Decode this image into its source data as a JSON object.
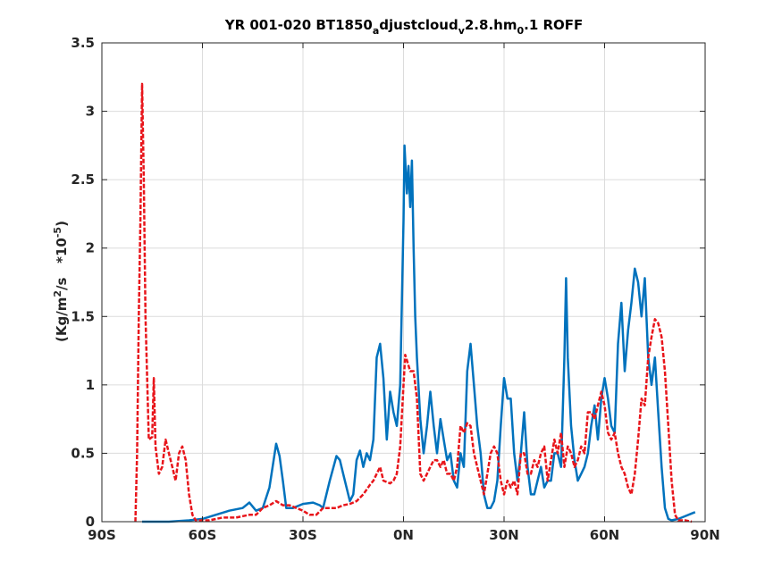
{
  "chart_data": {
    "type": "line",
    "title": "YR 001-020 BT1850_adjustcloud_v2.8.hm_0.1 ROFF",
    "title_parts": [
      "YR 001-020 BT1850",
      "a",
      "djustcloud",
      "v",
      "2.8.hm",
      "0",
      ".1 ROFF"
    ],
    "ylabel": "(Kg/m²/s   *10⁻⁵)",
    "ylabel_parts": [
      "(Kg/m",
      "2",
      "/s   *10",
      "-5",
      ")"
    ],
    "xlabel": "",
    "xlim": [
      -90,
      90
    ],
    "ylim": [
      0,
      3.5
    ],
    "x_ticks": [
      -90,
      -60,
      -30,
      0,
      30,
      60,
      90
    ],
    "x_tick_labels": [
      "90S",
      "60S",
      "30S",
      "0N",
      "30N",
      "60N",
      "90N"
    ],
    "y_ticks": [
      0,
      0.5,
      1,
      1.5,
      2,
      2.5,
      3,
      3.5
    ],
    "y_tick_labels": [
      "0",
      "0.5",
      "1",
      "1.5",
      "2",
      "2.5",
      "3",
      "3.5"
    ],
    "grid": true,
    "series": [
      {
        "color": "#0072bd",
        "style": "solid",
        "points": [
          [
            -78,
            0
          ],
          [
            -70,
            0
          ],
          [
            -64,
            0.01
          ],
          [
            -60,
            0.02
          ],
          [
            -56,
            0.05
          ],
          [
            -52,
            0.08
          ],
          [
            -48,
            0.1
          ],
          [
            -46,
            0.14
          ],
          [
            -44,
            0.08
          ],
          [
            -42,
            0.1
          ],
          [
            -40,
            0.25
          ],
          [
            -38,
            0.57
          ],
          [
            -37,
            0.48
          ],
          [
            -36,
            0.3
          ],
          [
            -35,
            0.1
          ],
          [
            -33,
            0.1
          ],
          [
            -30,
            0.13
          ],
          [
            -27,
            0.14
          ],
          [
            -25,
            0.12
          ],
          [
            -24,
            0.1
          ],
          [
            -22,
            0.3
          ],
          [
            -20,
            0.48
          ],
          [
            -19,
            0.45
          ],
          [
            -18,
            0.35
          ],
          [
            -16,
            0.15
          ],
          [
            -15,
            0.2
          ],
          [
            -14,
            0.45
          ],
          [
            -13,
            0.52
          ],
          [
            -12,
            0.4
          ],
          [
            -11,
            0.5
          ],
          [
            -10,
            0.45
          ],
          [
            -9,
            0.6
          ],
          [
            -8,
            1.2
          ],
          [
            -7,
            1.3
          ],
          [
            -6,
            1.05
          ],
          [
            -5,
            0.6
          ],
          [
            -4,
            0.95
          ],
          [
            -3,
            0.8
          ],
          [
            -2,
            0.7
          ],
          [
            -1,
            1.0
          ],
          [
            0,
            2.2
          ],
          [
            0.3,
            2.75
          ],
          [
            1,
            2.4
          ],
          [
            1.5,
            2.6
          ],
          [
            2,
            2.3
          ],
          [
            2.5,
            2.64
          ],
          [
            3,
            2.0
          ],
          [
            3.5,
            1.5
          ],
          [
            4,
            1.2
          ],
          [
            5,
            0.75
          ],
          [
            6,
            0.5
          ],
          [
            7,
            0.7
          ],
          [
            8,
            0.95
          ],
          [
            9,
            0.7
          ],
          [
            10,
            0.5
          ],
          [
            11,
            0.75
          ],
          [
            12,
            0.6
          ],
          [
            13,
            0.45
          ],
          [
            14,
            0.5
          ],
          [
            15,
            0.3
          ],
          [
            16,
            0.25
          ],
          [
            17,
            0.5
          ],
          [
            18,
            0.4
          ],
          [
            19,
            1.1
          ],
          [
            20,
            1.3
          ],
          [
            21,
            1.0
          ],
          [
            22,
            0.7
          ],
          [
            23,
            0.5
          ],
          [
            24,
            0.2
          ],
          [
            25,
            0.1
          ],
          [
            26,
            0.1
          ],
          [
            27,
            0.15
          ],
          [
            28,
            0.3
          ],
          [
            29,
            0.7
          ],
          [
            30,
            1.05
          ],
          [
            31,
            0.9
          ],
          [
            32,
            0.9
          ],
          [
            33,
            0.5
          ],
          [
            34,
            0.3
          ],
          [
            35,
            0.5
          ],
          [
            36,
            0.8
          ],
          [
            37,
            0.4
          ],
          [
            38,
            0.2
          ],
          [
            39,
            0.2
          ],
          [
            40,
            0.3
          ],
          [
            41,
            0.4
          ],
          [
            42,
            0.25
          ],
          [
            43,
            0.3
          ],
          [
            44,
            0.3
          ],
          [
            45,
            0.5
          ],
          [
            46,
            0.5
          ],
          [
            47,
            0.4
          ],
          [
            48,
            1.2
          ],
          [
            48.5,
            1.78
          ],
          [
            49,
            1.2
          ],
          [
            50,
            0.7
          ],
          [
            51,
            0.45
          ],
          [
            52,
            0.3
          ],
          [
            53,
            0.35
          ],
          [
            54,
            0.4
          ],
          [
            55,
            0.5
          ],
          [
            56,
            0.7
          ],
          [
            57,
            0.85
          ],
          [
            58,
            0.6
          ],
          [
            59,
            0.9
          ],
          [
            60,
            1.05
          ],
          [
            61,
            0.9
          ],
          [
            62,
            0.7
          ],
          [
            63,
            0.65
          ],
          [
            64,
            1.3
          ],
          [
            65,
            1.6
          ],
          [
            66,
            1.1
          ],
          [
            67,
            1.4
          ],
          [
            68,
            1.6
          ],
          [
            69,
            1.85
          ],
          [
            70,
            1.75
          ],
          [
            71,
            1.5
          ],
          [
            72,
            1.78
          ],
          [
            73,
            1.2
          ],
          [
            74,
            1.0
          ],
          [
            75,
            1.2
          ],
          [
            76,
            0.8
          ],
          [
            77,
            0.4
          ],
          [
            78,
            0.1
          ],
          [
            79,
            0.02
          ],
          [
            80,
            0.01
          ],
          [
            82,
            0.02
          ],
          [
            84,
            0.04
          ],
          [
            86,
            0.06
          ],
          [
            87,
            0.07
          ]
        ]
      },
      {
        "color": "#e8151b",
        "style": "dashed",
        "points": [
          [
            -80,
            0
          ],
          [
            -79.5,
            0.5
          ],
          [
            -79,
            1.5
          ],
          [
            -78.5,
            2.2
          ],
          [
            -78,
            3.2
          ],
          [
            -77.5,
            2.5
          ],
          [
            -77,
            1.5
          ],
          [
            -76,
            0.6
          ],
          [
            -75,
            0.62
          ],
          [
            -74.5,
            1.05
          ],
          [
            -74,
            0.55
          ],
          [
            -73,
            0.35
          ],
          [
            -72,
            0.4
          ],
          [
            -71,
            0.6
          ],
          [
            -70,
            0.5
          ],
          [
            -69,
            0.4
          ],
          [
            -68,
            0.3
          ],
          [
            -67,
            0.5
          ],
          [
            -66,
            0.55
          ],
          [
            -65,
            0.45
          ],
          [
            -64,
            0.2
          ],
          [
            -63,
            0.05
          ],
          [
            -62,
            0.01
          ],
          [
            -58,
            0.01
          ],
          [
            -54,
            0.03
          ],
          [
            -50,
            0.03
          ],
          [
            -46,
            0.05
          ],
          [
            -44,
            0.05
          ],
          [
            -42,
            0.1
          ],
          [
            -40,
            0.12
          ],
          [
            -38,
            0.15
          ],
          [
            -36,
            0.12
          ],
          [
            -34,
            0.12
          ],
          [
            -32,
            0.1
          ],
          [
            -30,
            0.08
          ],
          [
            -28,
            0.05
          ],
          [
            -26,
            0.05
          ],
          [
            -24,
            0.1
          ],
          [
            -20,
            0.1
          ],
          [
            -18,
            0.12
          ],
          [
            -16,
            0.13
          ],
          [
            -14,
            0.15
          ],
          [
            -12,
            0.2
          ],
          [
            -10,
            0.27
          ],
          [
            -9,
            0.3
          ],
          [
            -8,
            0.35
          ],
          [
            -7,
            0.4
          ],
          [
            -6,
            0.3
          ],
          [
            -4,
            0.28
          ],
          [
            -3,
            0.3
          ],
          [
            -2,
            0.35
          ],
          [
            -1,
            0.55
          ],
          [
            0,
            1.0
          ],
          [
            0.5,
            1.22
          ],
          [
            1,
            1.18
          ],
          [
            2,
            1.1
          ],
          [
            3,
            1.1
          ],
          [
            4,
            0.9
          ],
          [
            5,
            0.35
          ],
          [
            6,
            0.3
          ],
          [
            7,
            0.35
          ],
          [
            8,
            0.4
          ],
          [
            9,
            0.45
          ],
          [
            10,
            0.45
          ],
          [
            11,
            0.4
          ],
          [
            12,
            0.45
          ],
          [
            13,
            0.35
          ],
          [
            14,
            0.35
          ],
          [
            15,
            0.3
          ],
          [
            16,
            0.4
          ],
          [
            17,
            0.7
          ],
          [
            18,
            0.65
          ],
          [
            19,
            0.72
          ],
          [
            20,
            0.7
          ],
          [
            21,
            0.5
          ],
          [
            22,
            0.4
          ],
          [
            23,
            0.3
          ],
          [
            24,
            0.2
          ],
          [
            25,
            0.35
          ],
          [
            26,
            0.5
          ],
          [
            27,
            0.55
          ],
          [
            28,
            0.5
          ],
          [
            29,
            0.3
          ],
          [
            30,
            0.2
          ],
          [
            31,
            0.3
          ],
          [
            32,
            0.25
          ],
          [
            33,
            0.3
          ],
          [
            34,
            0.2
          ],
          [
            35,
            0.5
          ],
          [
            36,
            0.5
          ],
          [
            37,
            0.35
          ],
          [
            38,
            0.35
          ],
          [
            39,
            0.45
          ],
          [
            40,
            0.4
          ],
          [
            41,
            0.5
          ],
          [
            42,
            0.55
          ],
          [
            43,
            0.3
          ],
          [
            44,
            0.45
          ],
          [
            45,
            0.6
          ],
          [
            46,
            0.5
          ],
          [
            47,
            0.65
          ],
          [
            48,
            0.4
          ],
          [
            49,
            0.55
          ],
          [
            50,
            0.5
          ],
          [
            51,
            0.4
          ],
          [
            52,
            0.45
          ],
          [
            53,
            0.55
          ],
          [
            54,
            0.5
          ],
          [
            55,
            0.8
          ],
          [
            56,
            0.8
          ],
          [
            57,
            0.75
          ],
          [
            58,
            0.85
          ],
          [
            59,
            0.95
          ],
          [
            60,
            0.85
          ],
          [
            61,
            0.65
          ],
          [
            62,
            0.6
          ],
          [
            63,
            0.65
          ],
          [
            64,
            0.5
          ],
          [
            65,
            0.4
          ],
          [
            66,
            0.35
          ],
          [
            67,
            0.25
          ],
          [
            68,
            0.2
          ],
          [
            69,
            0.35
          ],
          [
            70,
            0.6
          ],
          [
            71,
            0.9
          ],
          [
            72,
            0.85
          ],
          [
            73,
            1.2
          ],
          [
            74,
            1.35
          ],
          [
            75,
            1.48
          ],
          [
            76,
            1.45
          ],
          [
            77,
            1.35
          ],
          [
            78,
            1.1
          ],
          [
            79,
            0.7
          ],
          [
            80,
            0.3
          ],
          [
            81,
            0.05
          ],
          [
            82,
            0.01
          ],
          [
            84,
            0.01
          ],
          [
            86,
            0.0
          ]
        ]
      }
    ]
  }
}
